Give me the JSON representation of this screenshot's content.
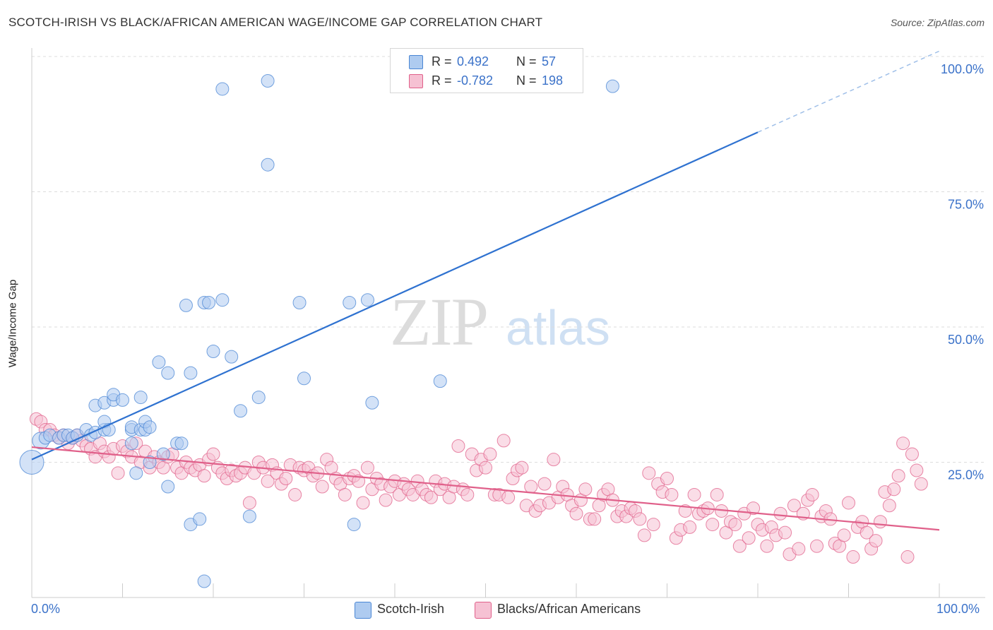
{
  "title": "SCOTCH-IRISH VS BLACK/AFRICAN AMERICAN WAGE/INCOME GAP CORRELATION CHART",
  "source": "Source: ZipAtlas.com",
  "watermark": {
    "zip": "ZIP",
    "atlas": "atlas"
  },
  "legend": {
    "rows": [
      {
        "r_label": "R =",
        "r_value": "0.492",
        "n_label": "N =",
        "n_value": "57",
        "color": "#aecbf0"
      },
      {
        "r_label": "R =",
        "r_value": "-0.782",
        "n_label": "N =",
        "n_value": "198",
        "color": "#f6c1d3"
      }
    ]
  },
  "bottom_legend": [
    {
      "label": "Scotch-Irish",
      "color": "#aecbf0"
    },
    {
      "label": "Blacks/African Americans",
      "color": "#f6c1d3"
    }
  ],
  "chart_data": {
    "type": "scatter",
    "title": "SCOTCH-IRISH VS BLACK/AFRICAN AMERICAN WAGE/INCOME GAP CORRELATION CHART",
    "xlabel": "",
    "ylabel": "Wage/Income Gap",
    "xlim": [
      0,
      100
    ],
    "ylim": [
      0,
      100
    ],
    "x_tick_labels": [
      "0.0%",
      "100.0%"
    ],
    "y_ticks": [
      25,
      50,
      75,
      100
    ],
    "y_tick_labels": [
      "25.0%",
      "50.0%",
      "75.0%",
      "100.0%"
    ],
    "grid": true,
    "legend_position": "top-center",
    "series": [
      {
        "name": "Scotch-Irish",
        "color": "#4a86d4",
        "fill": "#aecbf0",
        "r": 0.492,
        "n": 57,
        "trend": {
          "x0": 0,
          "y0": 25.5,
          "x1": 80,
          "y1": 86,
          "dashed_to_x": 100,
          "dashed_to_y": 101
        },
        "points": [
          [
            0,
            25,
            3
          ],
          [
            1,
            29,
            2
          ],
          [
            1.5,
            29.5,
            1
          ],
          [
            2,
            30,
            1
          ],
          [
            3,
            29.5,
            1
          ],
          [
            3.5,
            30,
            1
          ],
          [
            4,
            30,
            1
          ],
          [
            4.5,
            29.5,
            1
          ],
          [
            5,
            30,
            1
          ],
          [
            6,
            31,
            1
          ],
          [
            6.5,
            30,
            1
          ],
          [
            7,
            30.5,
            1
          ],
          [
            7,
            35.5,
            1
          ],
          [
            8,
            31,
            1
          ],
          [
            8,
            32.5,
            1
          ],
          [
            8.5,
            31,
            1
          ],
          [
            8,
            36,
            1
          ],
          [
            9,
            36.5,
            1
          ],
          [
            9,
            37.5,
            1
          ],
          [
            10,
            36.5,
            1
          ],
          [
            11,
            28.5,
            1
          ],
          [
            11,
            31,
            1
          ],
          [
            11,
            31.5,
            1
          ],
          [
            11.5,
            23,
            1
          ],
          [
            12,
            37,
            1
          ],
          [
            12,
            31,
            1
          ],
          [
            12.5,
            31,
            1
          ],
          [
            12.5,
            32.5,
            1
          ],
          [
            13,
            31.5,
            1
          ],
          [
            13,
            25,
            1
          ],
          [
            14,
            43.5,
            1
          ],
          [
            14.5,
            26.5,
            1
          ],
          [
            15,
            20.5,
            1
          ],
          [
            15,
            41.5,
            1
          ],
          [
            16,
            28.5,
            1
          ],
          [
            16.5,
            28.5,
            1
          ],
          [
            17,
            54,
            1
          ],
          [
            17.5,
            13.5,
            1
          ],
          [
            17.5,
            41.5,
            1
          ],
          [
            18.5,
            14.5,
            1
          ],
          [
            19,
            3,
            1
          ],
          [
            19,
            54.5,
            1
          ],
          [
            19.5,
            54.5,
            1
          ],
          [
            20,
            45.5,
            1
          ],
          [
            21,
            55,
            1
          ],
          [
            21,
            94,
            1
          ],
          [
            22,
            44.5,
            1
          ],
          [
            23,
            34.5,
            1
          ],
          [
            24,
            15,
            1
          ],
          [
            25,
            37,
            1
          ],
          [
            26,
            80,
            1
          ],
          [
            26,
            95.5,
            1
          ],
          [
            29.5,
            54.5,
            1
          ],
          [
            30,
            40.5,
            1
          ],
          [
            35,
            54.5,
            1
          ],
          [
            35.5,
            13.5,
            1
          ],
          [
            37,
            55,
            1
          ],
          [
            37.5,
            36,
            1
          ],
          [
            45,
            40,
            1
          ],
          [
            64,
            94.5,
            1
          ]
        ]
      },
      {
        "name": "Blacks/African Americans",
        "color": "#e0608a",
        "fill": "#f6c1d3",
        "r": -0.782,
        "n": 198,
        "trend": {
          "x0": 0,
          "y0": 27.8,
          "x1": 100,
          "y1": 12.5
        },
        "points": [
          [
            0.5,
            33
          ],
          [
            1,
            32.5
          ],
          [
            1.5,
            31
          ],
          [
            2,
            31
          ],
          [
            2.5,
            30
          ],
          [
            3,
            29.5
          ],
          [
            3.5,
            30
          ],
          [
            4,
            28.5
          ],
          [
            4.5,
            29.5
          ],
          [
            5,
            30
          ],
          [
            5.5,
            29
          ],
          [
            6,
            28
          ],
          [
            6.5,
            27.5
          ],
          [
            7,
            26
          ],
          [
            7.5,
            28.5
          ],
          [
            8,
            27
          ],
          [
            8.5,
            26
          ],
          [
            9,
            27.5
          ],
          [
            9.5,
            23
          ],
          [
            10,
            28
          ],
          [
            10.5,
            27
          ],
          [
            11,
            26
          ],
          [
            11.5,
            28.5
          ],
          [
            12,
            25
          ],
          [
            12.5,
            27
          ],
          [
            13,
            24
          ],
          [
            13.5,
            26
          ],
          [
            14,
            25
          ],
          [
            14.5,
            24
          ],
          [
            15,
            26
          ],
          [
            15.5,
            26.5
          ],
          [
            16,
            24
          ],
          [
            16.5,
            23
          ],
          [
            17,
            25
          ],
          [
            17.5,
            24
          ],
          [
            18,
            23.5
          ],
          [
            18.5,
            24.5
          ],
          [
            19,
            22.5
          ],
          [
            19.5,
            25.5
          ],
          [
            20,
            26.5
          ],
          [
            20.5,
            24
          ],
          [
            21,
            23
          ],
          [
            21.5,
            22
          ],
          [
            22,
            23.5
          ],
          [
            22.5,
            22.5
          ],
          [
            23,
            23
          ],
          [
            23.5,
            24
          ],
          [
            24,
            17.5
          ],
          [
            24.5,
            23
          ],
          [
            25,
            25
          ],
          [
            25.5,
            24
          ],
          [
            26,
            21.5
          ],
          [
            26.5,
            24.5
          ],
          [
            27,
            23
          ],
          [
            27.5,
            21
          ],
          [
            28,
            22
          ],
          [
            28.5,
            24.5
          ],
          [
            29,
            19
          ],
          [
            29.5,
            24
          ],
          [
            30,
            23.5
          ],
          [
            30.5,
            24
          ],
          [
            31,
            22.5
          ],
          [
            31.5,
            23
          ],
          [
            32,
            20.5
          ],
          [
            32.5,
            25.5
          ],
          [
            33,
            24
          ],
          [
            33.5,
            22
          ],
          [
            34,
            21
          ],
          [
            34.5,
            19
          ],
          [
            35,
            22
          ],
          [
            35.5,
            22.5
          ],
          [
            36,
            21.5
          ],
          [
            36.5,
            17.5
          ],
          [
            37,
            24
          ],
          [
            37.5,
            20
          ],
          [
            38,
            22
          ],
          [
            38.5,
            21
          ],
          [
            39,
            18
          ],
          [
            39.5,
            20.5
          ],
          [
            40,
            21.5
          ],
          [
            40.5,
            19
          ],
          [
            41,
            21
          ],
          [
            41.5,
            20
          ],
          [
            42,
            19
          ],
          [
            42.5,
            21.5
          ],
          [
            43,
            20
          ],
          [
            43.5,
            19
          ],
          [
            44,
            18.5
          ],
          [
            44.5,
            21.5
          ],
          [
            45,
            20
          ],
          [
            45.5,
            21
          ],
          [
            46,
            18.5
          ],
          [
            46.5,
            20.5
          ],
          [
            47,
            28
          ],
          [
            47.5,
            20
          ],
          [
            48,
            19
          ],
          [
            48.5,
            26.5
          ],
          [
            49,
            23.5
          ],
          [
            49.5,
            25.5
          ],
          [
            50,
            24
          ],
          [
            50.5,
            26.5
          ],
          [
            51,
            19
          ],
          [
            51.5,
            19
          ],
          [
            52,
            29
          ],
          [
            52.5,
            18.5
          ],
          [
            53,
            22
          ],
          [
            53.5,
            23.5
          ],
          [
            54,
            24
          ],
          [
            54.5,
            17
          ],
          [
            55,
            20.5
          ],
          [
            55.5,
            16
          ],
          [
            56,
            17
          ],
          [
            56.5,
            21
          ],
          [
            57,
            17.5
          ],
          [
            57.5,
            25.5
          ],
          [
            58,
            18.5
          ],
          [
            58.5,
            20.5
          ],
          [
            59,
            19
          ],
          [
            59.5,
            17
          ],
          [
            60,
            15.5
          ],
          [
            60.5,
            18
          ],
          [
            61,
            20
          ],
          [
            61.5,
            14.5
          ],
          [
            62,
            14.5
          ],
          [
            62.5,
            17
          ],
          [
            63,
            19
          ],
          [
            63.5,
            20
          ],
          [
            64,
            18
          ],
          [
            64.5,
            15
          ],
          [
            65,
            16
          ],
          [
            65.5,
            15
          ],
          [
            66,
            16.5
          ],
          [
            66.5,
            16
          ],
          [
            67,
            14.5
          ],
          [
            67.5,
            11.5
          ],
          [
            68,
            23
          ],
          [
            68.5,
            13.5
          ],
          [
            69,
            21
          ],
          [
            69.5,
            19.5
          ],
          [
            70,
            22
          ],
          [
            70.5,
            19
          ],
          [
            71,
            11
          ],
          [
            71.5,
            12.5
          ],
          [
            72,
            16
          ],
          [
            72.5,
            13
          ],
          [
            73,
            19
          ],
          [
            73.5,
            15.5
          ],
          [
            74,
            16
          ],
          [
            74.5,
            16.5
          ],
          [
            75,
            13.5
          ],
          [
            75.5,
            19
          ],
          [
            76,
            16
          ],
          [
            76.5,
            12
          ],
          [
            77,
            14
          ],
          [
            77.5,
            13.5
          ],
          [
            78,
            9.5
          ],
          [
            78.5,
            15.5
          ],
          [
            79,
            11
          ],
          [
            79.5,
            16.5
          ],
          [
            80,
            13.5
          ],
          [
            80.5,
            12.5
          ],
          [
            81,
            9.5
          ],
          [
            81.5,
            13
          ],
          [
            82,
            11.5
          ],
          [
            82.5,
            15.5
          ],
          [
            83,
            12
          ],
          [
            83.5,
            8
          ],
          [
            84,
            17
          ],
          [
            84.5,
            9
          ],
          [
            85,
            15.5
          ],
          [
            85.5,
            18
          ],
          [
            86,
            19
          ],
          [
            86.5,
            9.5
          ],
          [
            87,
            15
          ],
          [
            87.5,
            16
          ],
          [
            88,
            14.5
          ],
          [
            88.5,
            10
          ],
          [
            89,
            9.5
          ],
          [
            89.5,
            11.5
          ],
          [
            90,
            17.5
          ],
          [
            90.5,
            7.5
          ],
          [
            91,
            13
          ],
          [
            91.5,
            14
          ],
          [
            92,
            12
          ],
          [
            92.5,
            9
          ],
          [
            93,
            10.5
          ],
          [
            93.5,
            14
          ],
          [
            94,
            19.5
          ],
          [
            94.5,
            17
          ],
          [
            95,
            20
          ],
          [
            95.5,
            22.5
          ],
          [
            96,
            28.5
          ],
          [
            96.5,
            7.5
          ],
          [
            97,
            26.5
          ],
          [
            97.5,
            23.5
          ],
          [
            98,
            21
          ]
        ]
      }
    ]
  }
}
